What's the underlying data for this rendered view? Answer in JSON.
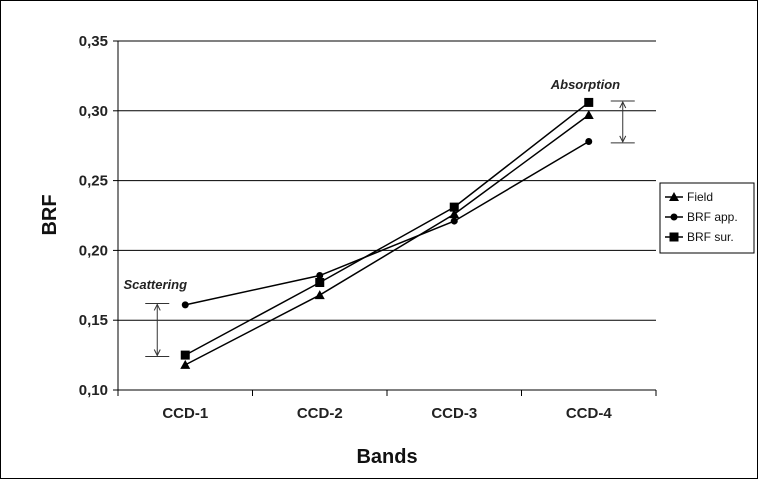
{
  "chart_data": {
    "type": "line",
    "title": "",
    "xlabel": "Bands",
    "ylabel": "BRF",
    "categories": [
      "CCD-1",
      "CCD-2",
      "CCD-3",
      "CCD-4"
    ],
    "ylim": [
      0.1,
      0.35
    ],
    "yticks": [
      "0,10",
      "0,15",
      "0,20",
      "0,25",
      "0,30",
      "0,35"
    ],
    "yticks_values": [
      0.1,
      0.15,
      0.2,
      0.25,
      0.3,
      0.35
    ],
    "grid": true,
    "legend_position": "right",
    "series": [
      {
        "name": "Field",
        "marker": "triangle",
        "values": [
          0.118,
          0.168,
          0.226,
          0.297
        ]
      },
      {
        "name": "BRF app.",
        "marker": "circle",
        "values": [
          0.161,
          0.182,
          0.221,
          0.278
        ]
      },
      {
        "name": "BRF sur.",
        "marker": "square",
        "values": [
          0.125,
          0.177,
          0.231,
          0.306
        ]
      }
    ],
    "annotations": [
      {
        "text": "Scattering",
        "category": "CCD-1",
        "from": 0.162,
        "to": 0.124
      },
      {
        "text": "Absorption",
        "category": "CCD-4",
        "from": 0.307,
        "to": 0.277
      }
    ]
  }
}
